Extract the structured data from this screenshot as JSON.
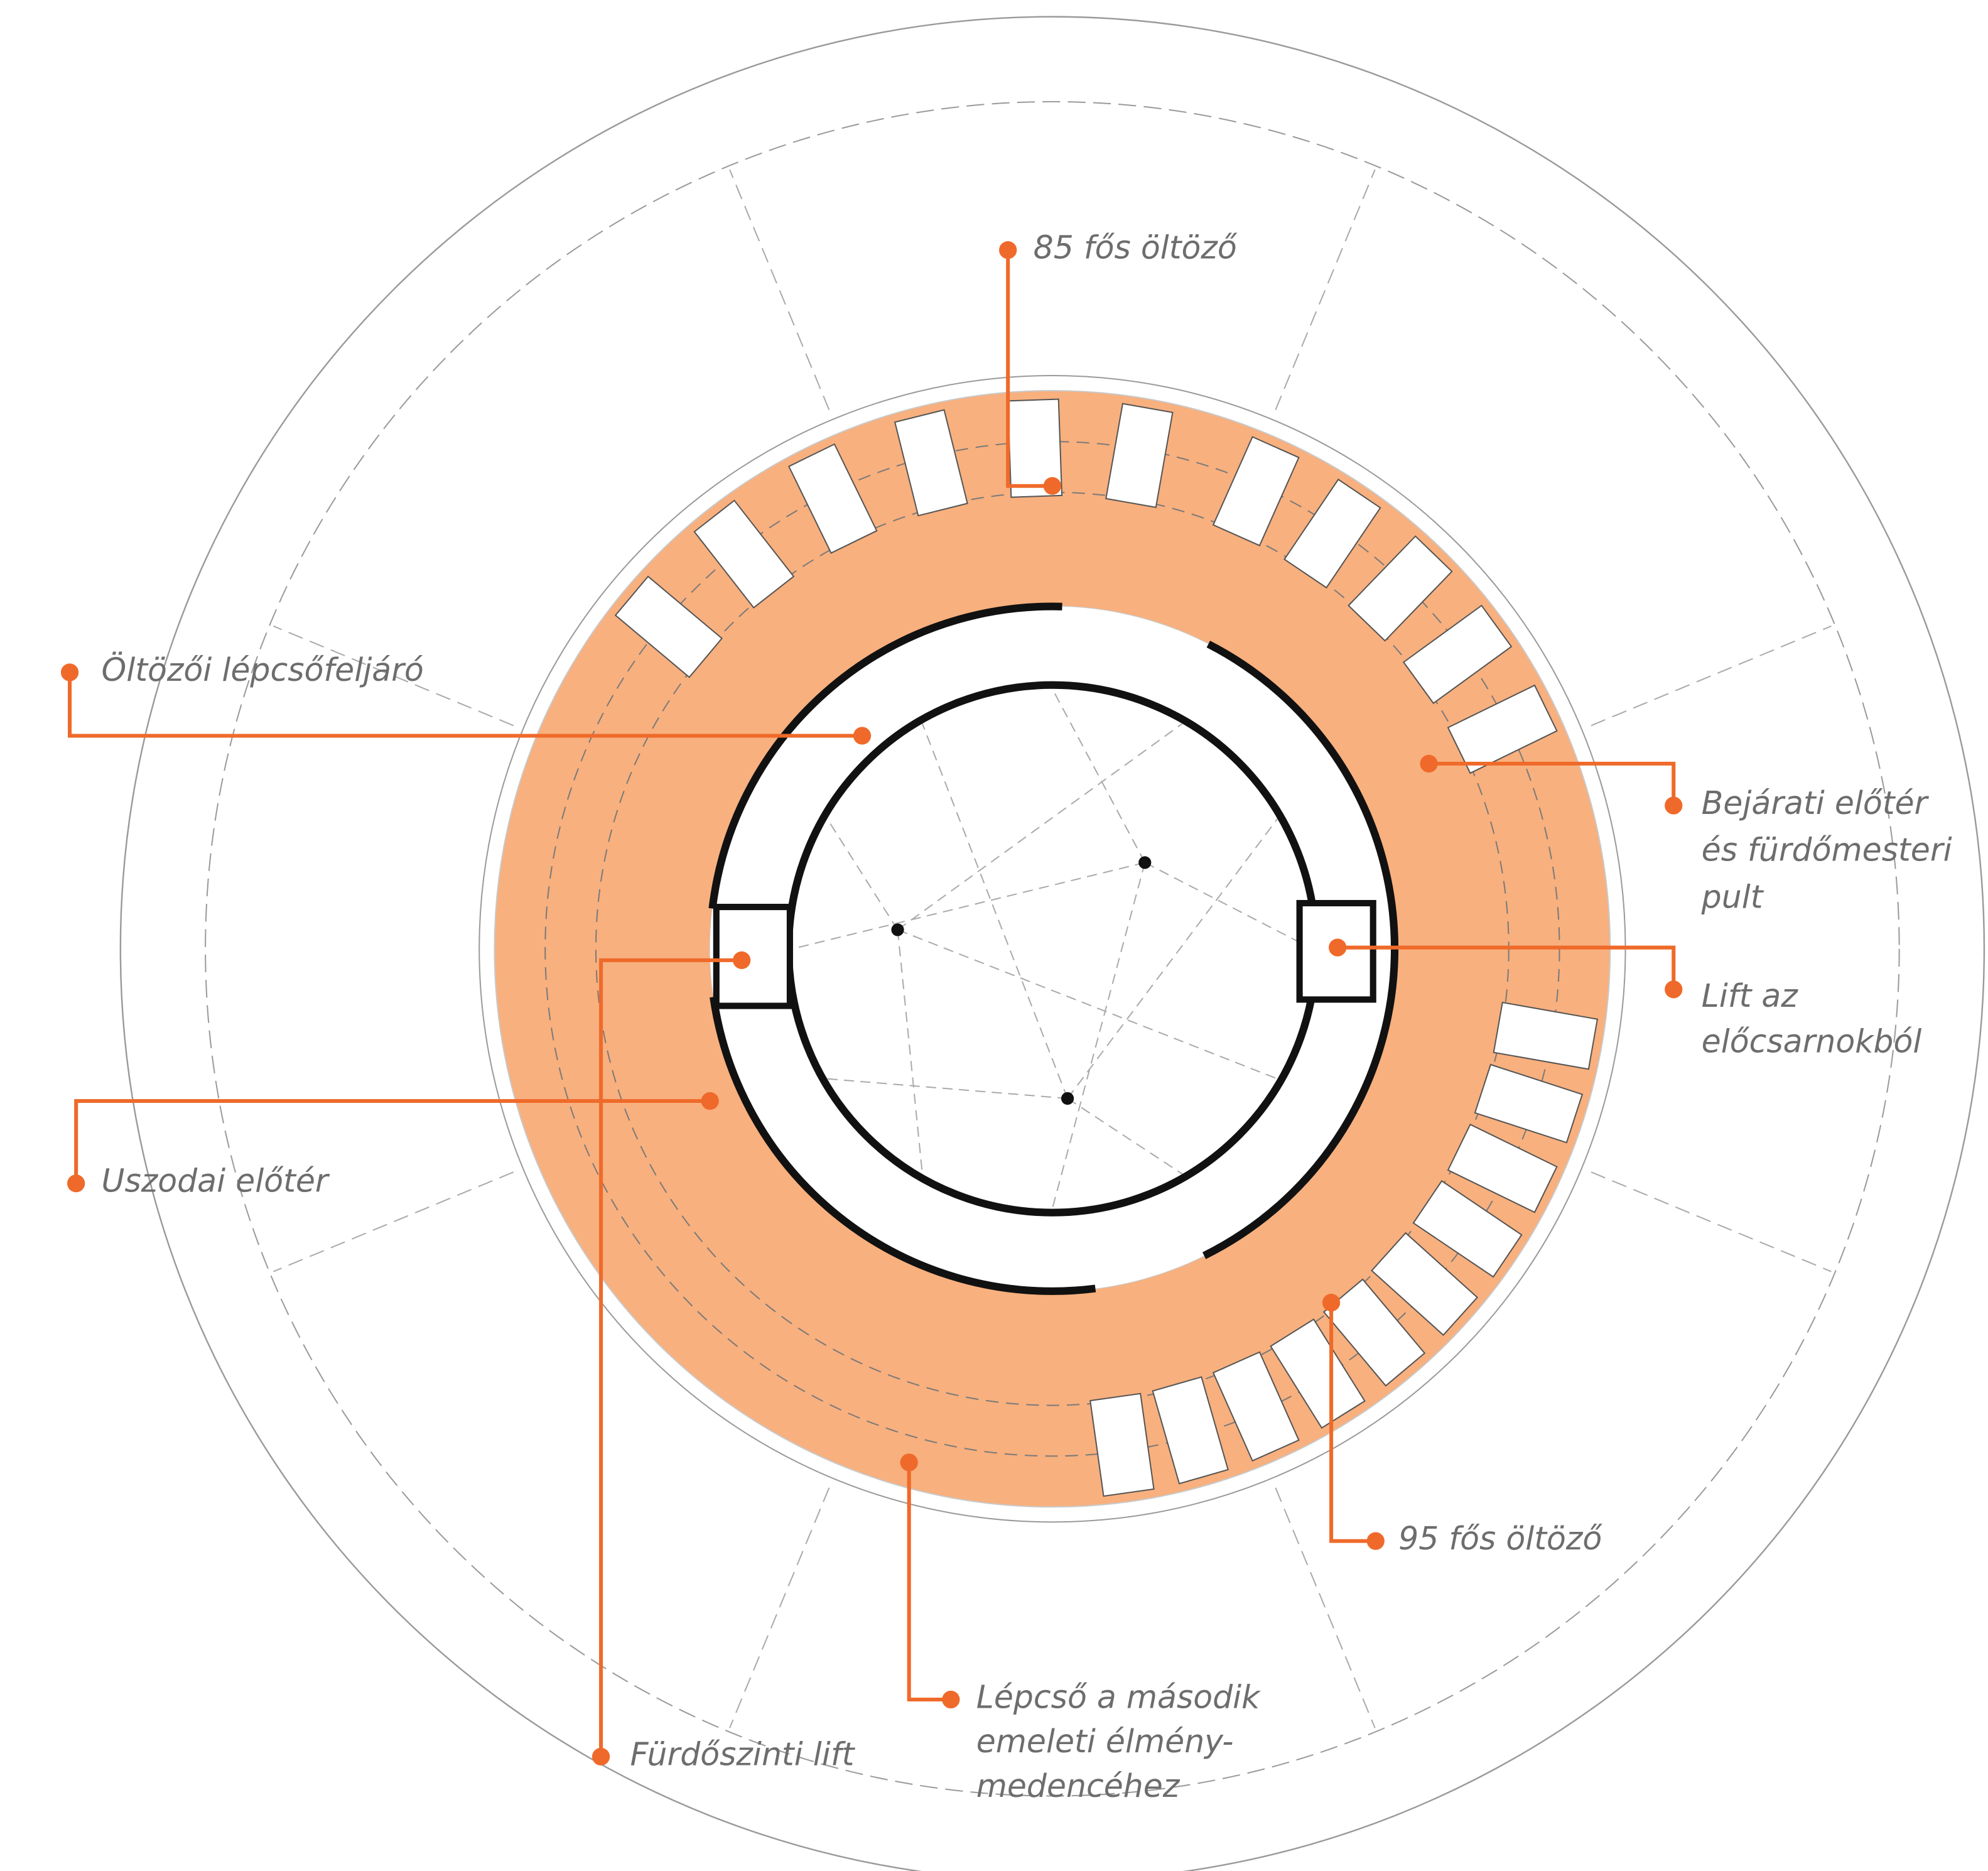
{
  "labels": [
    {
      "lines": [
        "85 fős öltöző"
      ]
    },
    {
      "lines": [
        "Öltözői lépcsőfeljáró"
      ]
    },
    {
      "lines": [
        "Bejárati előtér",
        "és fürdőmesteri",
        "pult"
      ]
    },
    {
      "lines": [
        "Lift az",
        "előcsarnokból"
      ]
    },
    {
      "lines": [
        "Uszodai előtér"
      ]
    },
    {
      "lines": [
        "95 fős öltöző"
      ]
    },
    {
      "lines": [
        "Lépcső a második",
        "emeleti élmény-",
        "medencéhez"
      ]
    },
    {
      "lines": [
        "Fürdőszinti lift"
      ]
    }
  ]
}
